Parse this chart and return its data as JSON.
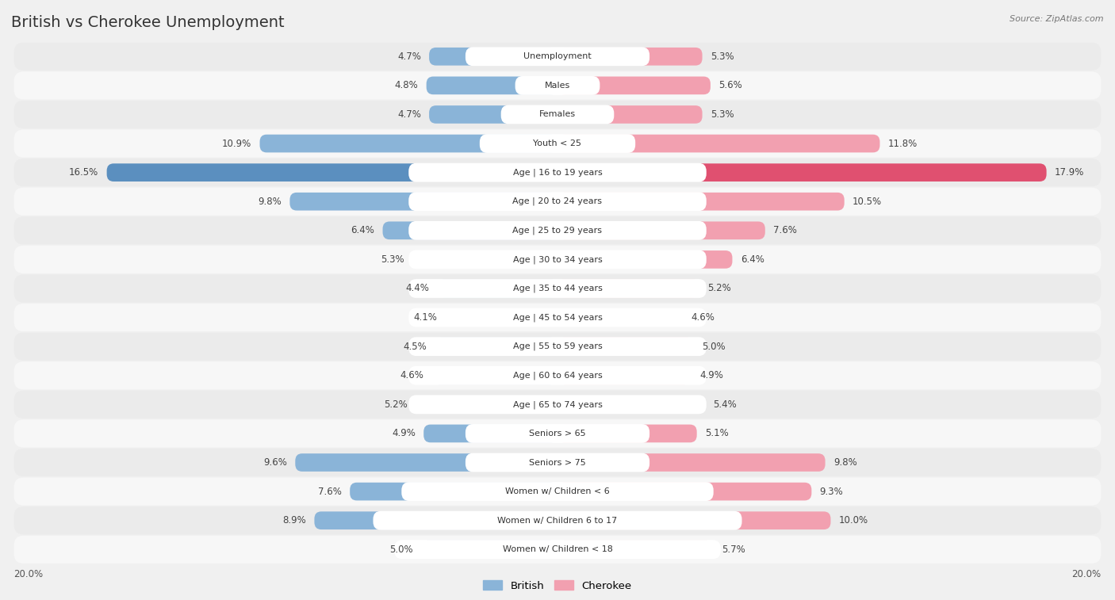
{
  "title": "British vs Cherokee Unemployment",
  "source": "Source: ZipAtlas.com",
  "categories": [
    "Unemployment",
    "Males",
    "Females",
    "Youth < 25",
    "Age | 16 to 19 years",
    "Age | 20 to 24 years",
    "Age | 25 to 29 years",
    "Age | 30 to 34 years",
    "Age | 35 to 44 years",
    "Age | 45 to 54 years",
    "Age | 55 to 59 years",
    "Age | 60 to 64 years",
    "Age | 65 to 74 years",
    "Seniors > 65",
    "Seniors > 75",
    "Women w/ Children < 6",
    "Women w/ Children 6 to 17",
    "Women w/ Children < 18"
  ],
  "british": [
    4.7,
    4.8,
    4.7,
    10.9,
    16.5,
    9.8,
    6.4,
    5.3,
    4.4,
    4.1,
    4.5,
    4.6,
    5.2,
    4.9,
    9.6,
    7.6,
    8.9,
    5.0
  ],
  "cherokee": [
    5.3,
    5.6,
    5.3,
    11.8,
    17.9,
    10.5,
    7.6,
    6.4,
    5.2,
    4.6,
    5.0,
    4.9,
    5.4,
    5.1,
    9.8,
    9.3,
    10.0,
    5.7
  ],
  "british_color": "#8ab4d8",
  "cherokee_color": "#f2a0b0",
  "british_highlight_color": "#5b8fbf",
  "cherokee_highlight_color": "#e05070",
  "row_color_even": "#ebebeb",
  "row_color_odd": "#f7f7f7",
  "bg_color": "#f0f0f0",
  "highlight_row": 4,
  "axis_limit": 20.0,
  "legend_british": "British",
  "legend_cherokee": "Cherokee",
  "label_box_color": "#ffffff",
  "title_fontsize": 14,
  "value_fontsize": 8.5,
  "label_fontsize": 8.0
}
